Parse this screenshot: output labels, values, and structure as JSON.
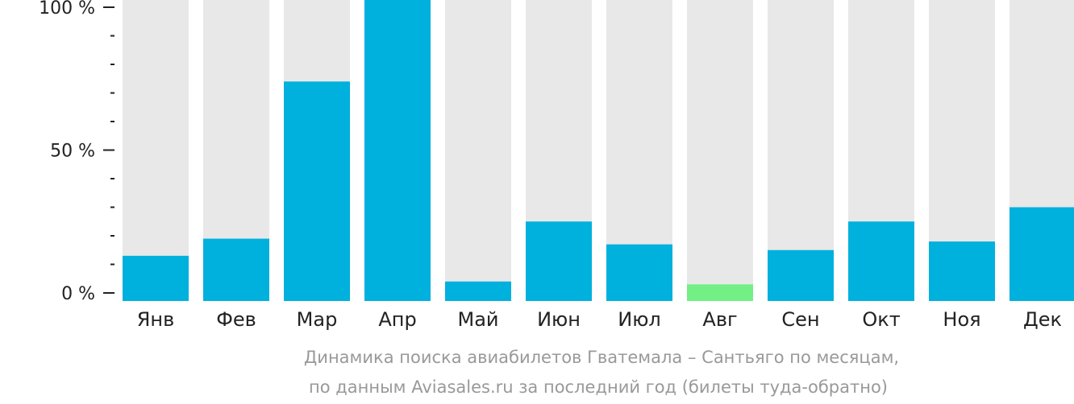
{
  "chart_data": {
    "type": "bar",
    "categories": [
      "Янв",
      "Фев",
      "Мар",
      "Апр",
      "Май",
      "Июн",
      "Июл",
      "Авг",
      "Сен",
      "Окт",
      "Ноя",
      "Дек"
    ],
    "values": [
      13,
      19,
      74,
      104,
      4,
      25,
      17,
      3,
      15,
      25,
      18,
      30
    ],
    "highlight_category": "Авг",
    "ylim": [
      0,
      100
    ],
    "yticks": [
      {
        "value": 100,
        "label": "100 %"
      },
      {
        "value": 50,
        "label": "50 %"
      },
      {
        "value": 0,
        "label": "0 %"
      }
    ],
    "minor_tick_step": 10,
    "grid": false,
    "colors": {
      "bar": "#00b0dd",
      "highlight": "#72ef85",
      "track": "#e8e8e8",
      "axis": "#222222",
      "caption": "#999999"
    },
    "caption": [
      "Динамика поиска авиабилетов Гватемала – Сантьяго по месяцам,",
      "по данным Aviasales.ru за последний год (билеты туда-обратно)"
    ]
  }
}
